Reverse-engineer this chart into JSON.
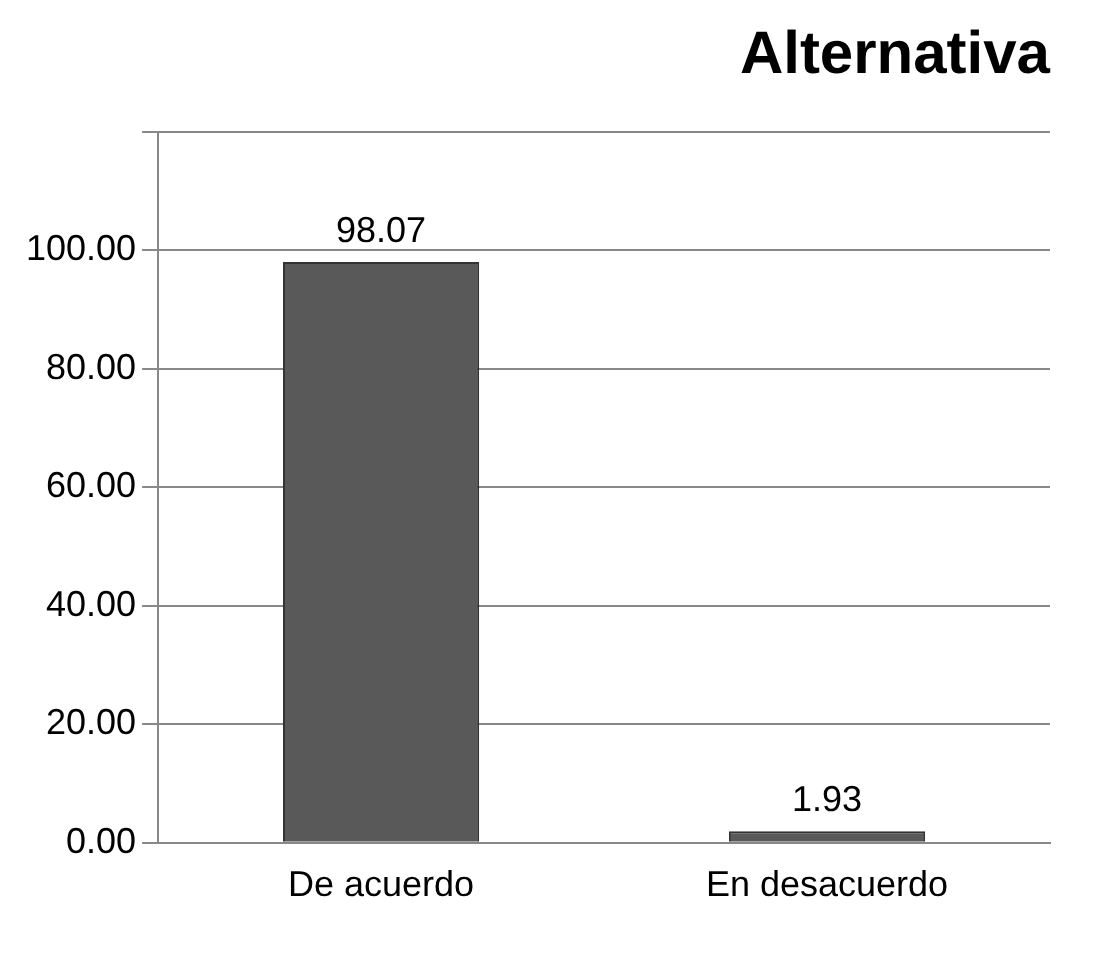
{
  "chart_data": {
    "type": "bar",
    "title": "Alternativa",
    "categories": [
      "De acuerdo",
      "En desacuerdo"
    ],
    "values": [
      98.07,
      1.93
    ],
    "color": "#595959",
    "ylim": [
      0,
      120
    ],
    "yticks": [
      {
        "value": 0,
        "label": "0.00"
      },
      {
        "value": 20,
        "label": "20.00"
      },
      {
        "value": 40,
        "label": "40.00"
      },
      {
        "value": 60,
        "label": "60.00"
      },
      {
        "value": 80,
        "label": "80.00"
      },
      {
        "value": 100,
        "label": "100.00"
      },
      {
        "value": 120,
        "label": null
      }
    ],
    "grid": "y",
    "legend": false,
    "data_labels": true
  }
}
